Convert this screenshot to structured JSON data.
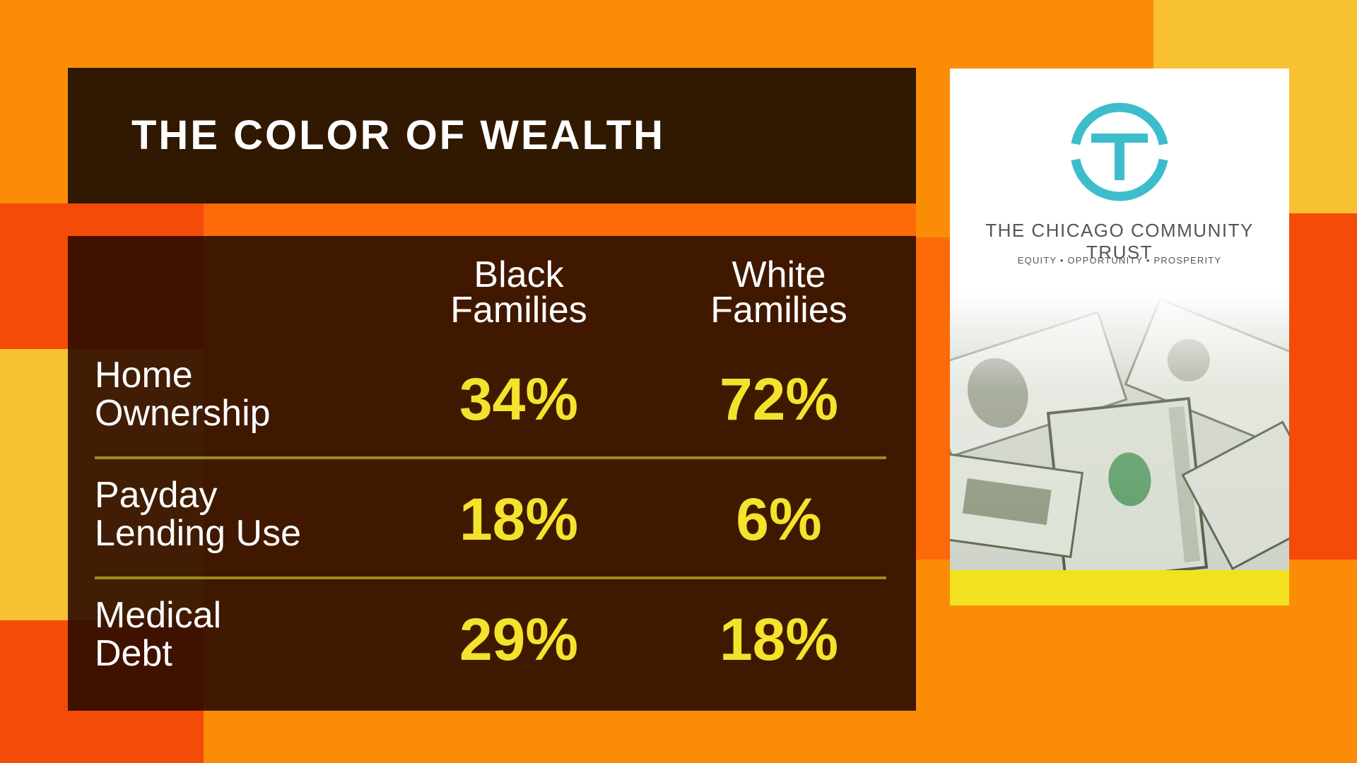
{
  "title": "THE COLOR OF WEALTH",
  "table": {
    "columns": [
      {
        "line1": "Black",
        "line2": "Families"
      },
      {
        "line1": "White",
        "line2": "Families"
      }
    ],
    "rows": [
      {
        "label_line1": "Home",
        "label_line2": "Ownership",
        "black": "34%",
        "white": "72%"
      },
      {
        "label_line1": "Payday",
        "label_line2": "Lending Use",
        "black": "18%",
        "white": "6%"
      },
      {
        "label_line1": "Medical",
        "label_line2": "Debt",
        "black": "29%",
        "white": "18%"
      }
    ]
  },
  "sidebar": {
    "org_name": "THE CHICAGO COMMUNITY TRUST",
    "tagline": "EQUITY • OPPORTUNITY • PROSPERITY",
    "logo_letter": "T",
    "logo_color": "#3dbdcc",
    "photo": "money-photo"
  },
  "colors": {
    "background": "#fb8c06",
    "panel": "#311800",
    "value_text": "#f3e32c",
    "accent_red": "#f54b08",
    "accent_yellow": "#f8c132"
  }
}
